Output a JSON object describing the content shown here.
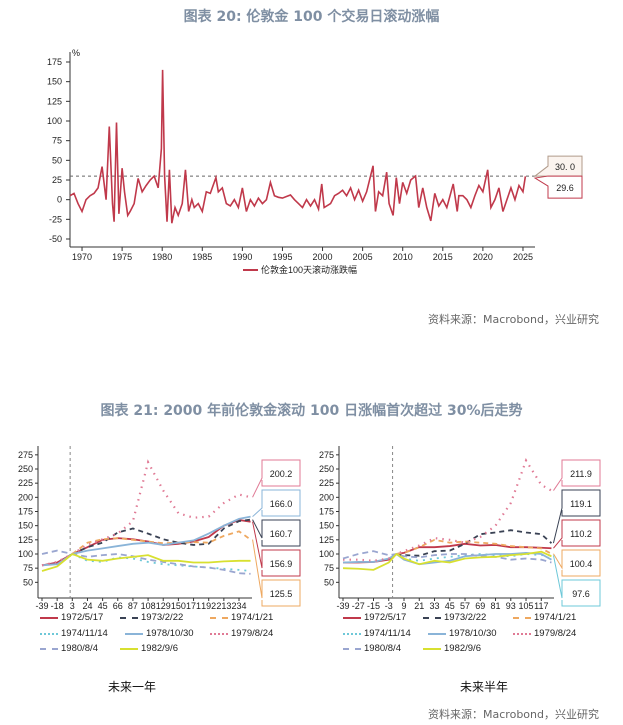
{
  "top": {
    "title": "图表 20: 伦敦金 100 个交易日滚动涨幅",
    "source": "资料来源：Macrobond，兴业研究"
  },
  "bottom": {
    "title": "图表 21: 2000 年前伦敦金滚动 100 日涨幅首次超过 30%后走势",
    "source": "资料来源：Macrobond，兴业研究",
    "left_caption": "未来一年",
    "right_caption": "未来半年"
  },
  "chart_data": [
    {
      "type": "line",
      "title": "",
      "unit_label": "%",
      "xlim": [
        1968.5,
        2026.5
      ],
      "ylim": [
        -50,
        175
      ],
      "xticks": [
        "1970",
        "1975",
        "1980",
        "1985",
        "1990",
        "1995",
        "2000",
        "2005",
        "2010",
        "2015",
        "2020",
        "2025"
      ],
      "yticks": [
        "175",
        "150",
        "125",
        "100",
        "75",
        "50",
        "25",
        "0",
        "-25",
        "-50"
      ],
      "reference_line": 30,
      "annotations": [
        {
          "text": "30. 0",
          "color": "#b09a8a"
        },
        {
          "text": "29.6",
          "color": "#c0394b"
        }
      ],
      "series": [
        {
          "name": "伦敦金100天滚动涨跌幅",
          "color": "#c0394b",
          "points": [
            [
              1968.5,
              5
            ],
            [
              1969,
              8
            ],
            [
              1969.5,
              -5
            ],
            [
              1970,
              -15
            ],
            [
              1970.5,
              0
            ],
            [
              1971,
              5
            ],
            [
              1971.5,
              8
            ],
            [
              1972,
              15
            ],
            [
              1972.5,
              42
            ],
            [
              1973,
              0
            ],
            [
              1973.4,
              93
            ],
            [
              1973.8,
              -5
            ],
            [
              1974,
              -28
            ],
            [
              1974.3,
              98
            ],
            [
              1974.6,
              -18
            ],
            [
              1975,
              40
            ],
            [
              1975.3,
              10
            ],
            [
              1975.7,
              -20
            ],
            [
              1976,
              -15
            ],
            [
              1976.5,
              -5
            ],
            [
              1977,
              27
            ],
            [
              1977.5,
              10
            ],
            [
              1978,
              18
            ],
            [
              1978.5,
              25
            ],
            [
              1979,
              30
            ],
            [
              1979.5,
              15
            ],
            [
              1979.9,
              65
            ],
            [
              1980.05,
              165
            ],
            [
              1980.3,
              30
            ],
            [
              1980.6,
              -28
            ],
            [
              1980.9,
              38
            ],
            [
              1981.2,
              -30
            ],
            [
              1981.6,
              -10
            ],
            [
              1982,
              -20
            ],
            [
              1982.5,
              -5
            ],
            [
              1982.9,
              38
            ],
            [
              1983.3,
              -15
            ],
            [
              1983.7,
              0
            ],
            [
              1984,
              -10
            ],
            [
              1984.5,
              -5
            ],
            [
              1985,
              -15
            ],
            [
              1985.5,
              10
            ],
            [
              1986,
              8
            ],
            [
              1986.7,
              28
            ],
            [
              1987,
              10
            ],
            [
              1987.5,
              15
            ],
            [
              1988,
              -5
            ],
            [
              1988.5,
              -8
            ],
            [
              1989,
              0
            ],
            [
              1989.5,
              -10
            ],
            [
              1990,
              15
            ],
            [
              1990.5,
              -15
            ],
            [
              1991,
              0
            ],
            [
              1991.5,
              -8
            ],
            [
              1992,
              2
            ],
            [
              1992.5,
              -5
            ],
            [
              1993,
              0
            ],
            [
              1993.5,
              22
            ],
            [
              1994,
              5
            ],
            [
              1994.5,
              3
            ],
            [
              1995,
              2
            ],
            [
              1995.5,
              4
            ],
            [
              1996,
              6
            ],
            [
              1996.5,
              0
            ],
            [
              1997,
              -5
            ],
            [
              1997.5,
              -10
            ],
            [
              1998,
              0
            ],
            [
              1998.5,
              -8
            ],
            [
              1999,
              0
            ],
            [
              1999.5,
              -12
            ],
            [
              1999.9,
              20
            ],
            [
              2000.2,
              -10
            ],
            [
              2001,
              -5
            ],
            [
              2001.5,
              5
            ],
            [
              2002,
              8
            ],
            [
              2002.5,
              12
            ],
            [
              2003,
              5
            ],
            [
              2003.5,
              15
            ],
            [
              2004,
              0
            ],
            [
              2004.5,
              12
            ],
            [
              2005,
              -2
            ],
            [
              2005.5,
              10
            ],
            [
              2006.3,
              43
            ],
            [
              2006.6,
              -15
            ],
            [
              2007,
              10
            ],
            [
              2007.5,
              5
            ],
            [
              2008,
              35
            ],
            [
              2008.3,
              -5
            ],
            [
              2008.8,
              -20
            ],
            [
              2009.2,
              28
            ],
            [
              2009.6,
              -5
            ],
            [
              2010,
              22
            ],
            [
              2010.5,
              8
            ],
            [
              2011,
              25
            ],
            [
              2011.6,
              30
            ],
            [
              2012,
              -10
            ],
            [
              2012.5,
              15
            ],
            [
              2013,
              -10
            ],
            [
              2013.5,
              -27
            ],
            [
              2014,
              8
            ],
            [
              2014.5,
              -8
            ],
            [
              2015,
              0
            ],
            [
              2015.5,
              -10
            ],
            [
              2016.3,
              20
            ],
            [
              2016.8,
              -15
            ],
            [
              2017,
              5
            ],
            [
              2017.5,
              5
            ],
            [
              2018,
              0
            ],
            [
              2018.5,
              -10
            ],
            [
              2019,
              5
            ],
            [
              2019.5,
              18
            ],
            [
              2020,
              10
            ],
            [
              2020.6,
              38
            ],
            [
              2021,
              -10
            ],
            [
              2021.5,
              0
            ],
            [
              2022,
              15
            ],
            [
              2022.5,
              -15
            ],
            [
              2023,
              0
            ],
            [
              2023.5,
              15
            ],
            [
              2024,
              0
            ],
            [
              2024.5,
              18
            ],
            [
              2025,
              10
            ],
            [
              2025.3,
              29.6
            ]
          ]
        }
      ]
    },
    {
      "type": "line",
      "caption": "未来一年",
      "xlim": [
        -39,
        252
      ],
      "ylim": [
        40,
        280
      ],
      "reference_x": 0,
      "xticks": [
        "-39",
        "-18",
        "3",
        "24",
        "45",
        "66",
        "87",
        "108",
        "129",
        "150",
        "171",
        "192",
        "213",
        "234"
      ],
      "yticks": [
        "275",
        "250",
        "225",
        "200",
        "175",
        "150",
        "125",
        "100",
        "75",
        "50"
      ],
      "x": [
        -39,
        -18,
        3,
        24,
        45,
        66,
        87,
        108,
        129,
        150,
        171,
        192,
        213,
        234,
        250
      ],
      "series": [
        {
          "name": "1972/5/17",
          "color": "#c0394b",
          "end_label": "156.9",
          "values": [
            80,
            85,
            100,
            112,
            125,
            128,
            126,
            122,
            116,
            118,
            122,
            130,
            150,
            160,
            157
          ]
        },
        {
          "name": "1973/2/22",
          "color": "#3a4254",
          "end_label": "160.7",
          "values": [
            null,
            null,
            100,
            112,
            120,
            138,
            145,
            136,
            126,
            120,
            116,
            118,
            145,
            158,
            160.7
          ]
        },
        {
          "name": "1974/1/21",
          "color": "#eea860",
          "end_label": "125.5",
          "values": [
            null,
            null,
            100,
            120,
            126,
            128,
            125,
            122,
            119,
            120,
            121,
            120,
            132,
            140,
            125.5
          ]
        },
        {
          "name": "1974/11/14",
          "color": "#6ec8d8",
          "end_label": "",
          "values": [
            null,
            null,
            100,
            88,
            86,
            94,
            92,
            86,
            82,
            80,
            78,
            76,
            74,
            72,
            70
          ]
        },
        {
          "name": "1978/10/30",
          "color": "#8ab4d8",
          "end_label": "166.0",
          "values": [
            80,
            82,
            100,
            106,
            110,
            114,
            118,
            120,
            116,
            120,
            124,
            136,
            150,
            162,
            166
          ]
        },
        {
          "name": "1979/8/24",
          "color": "#e07a95",
          "end_label": "200.2",
          "values": [
            80,
            86,
            100,
            116,
            126,
            136,
            158,
            262,
            212,
            172,
            164,
            166,
            190,
            205,
            200.2
          ]
        },
        {
          "name": "1980/8/4",
          "color": "#9aa6d0",
          "end_label": "",
          "values": [
            100,
            106,
            100,
            95,
            98,
            100,
            96,
            90,
            86,
            82,
            78,
            76,
            72,
            66,
            65
          ]
        },
        {
          "name": "1982/9/6",
          "color": "#d8e030",
          "end_label": "",
          "values": [
            70,
            78,
            100,
            90,
            88,
            92,
            95,
            98,
            88,
            88,
            85,
            85,
            87,
            88,
            88
          ]
        }
      ]
    },
    {
      "type": "line",
      "caption": "未来半年",
      "xlim": [
        -39,
        127
      ],
      "ylim": [
        40,
        280
      ],
      "reference_x": 0,
      "xticks": [
        "-39",
        "-27",
        "-15",
        "-3",
        "9",
        "21",
        "33",
        "45",
        "57",
        "69",
        "81",
        "93",
        "105",
        "117"
      ],
      "yticks": [
        "275",
        "250",
        "225",
        "200",
        "175",
        "150",
        "125",
        "100",
        "75",
        "50"
      ],
      "x": [
        -39,
        -27,
        -15,
        -3,
        3,
        9,
        21,
        33,
        45,
        57,
        69,
        81,
        93,
        105,
        117,
        125
      ],
      "series": [
        {
          "name": "1972/5/17",
          "color": "#c0394b",
          "end_label": "110.2",
          "values": [
            85,
            85,
            86,
            90,
            100,
            102,
            112,
            112,
            114,
            118,
            115,
            116,
            112,
            112,
            111,
            110.2
          ]
        },
        {
          "name": "1973/2/22",
          "color": "#3a4254",
          "end_label": "119.1",
          "values": [
            null,
            null,
            null,
            null,
            100,
            98,
            97,
            105,
            106,
            118,
            135,
            138,
            142,
            138,
            135,
            119.1
          ]
        },
        {
          "name": "1974/1/21",
          "color": "#eea860",
          "end_label": "100.4",
          "values": [
            null,
            null,
            null,
            null,
            100,
            102,
            112,
            125,
            120,
            122,
            120,
            118,
            114,
            112,
            110,
            100.4
          ]
        },
        {
          "name": "1974/11/14",
          "color": "#6ec8d8",
          "end_label": "97.6",
          "values": [
            null,
            null,
            null,
            null,
            100,
            92,
            88,
            92,
            95,
            98,
            100,
            98,
            96,
            100,
            98,
            97.6
          ]
        },
        {
          "name": "1978/10/30",
          "color": "#8ab4d8",
          "end_label": "",
          "values": [
            85,
            86,
            86,
            92,
            100,
            90,
            82,
            85,
            88,
            96,
            98,
            100,
            100,
            102,
            100,
            90
          ]
        },
        {
          "name": "1979/8/24",
          "color": "#e07a95",
          "end_label": "211.9",
          "values": [
            90,
            90,
            88,
            92,
            100,
            105,
            115,
            128,
            125,
            120,
            130,
            150,
            190,
            265,
            222,
            211.9
          ]
        },
        {
          "name": "1980/8/4",
          "color": "#9aa6d0",
          "end_label": "",
          "values": [
            92,
            100,
            105,
            98,
            100,
            96,
            94,
            98,
            100,
            100,
            96,
            95,
            90,
            92,
            90,
            85
          ]
        },
        {
          "name": "1982/9/6",
          "color": "#d8e030",
          "end_label": "",
          "values": [
            75,
            74,
            72,
            85,
            100,
            92,
            82,
            88,
            85,
            92,
            94,
            95,
            98,
            100,
            104,
            96
          ]
        }
      ]
    }
  ]
}
